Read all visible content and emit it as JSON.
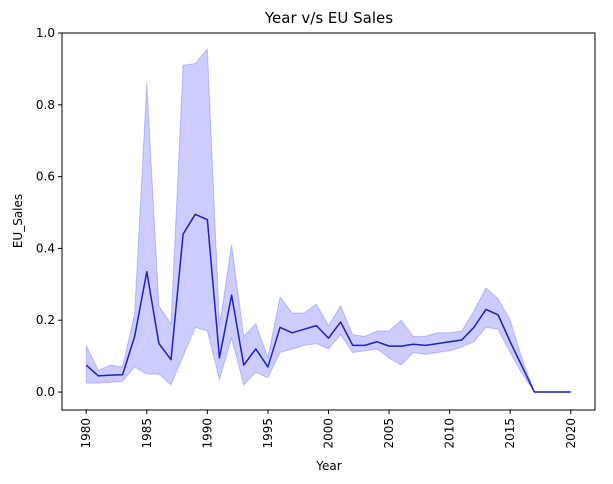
{
  "chart_data": {
    "type": "line",
    "title": "Year v/s EU Sales",
    "xlabel": "Year",
    "ylabel": "EU_Sales",
    "xlim": [
      1978.0,
      2022.0
    ],
    "ylim": [
      -0.05,
      1.0
    ],
    "xticks": [
      1980,
      1985,
      1990,
      1995,
      2000,
      2005,
      2010,
      2015,
      2020
    ],
    "yticks": [
      0.0,
      0.2,
      0.4,
      0.6,
      0.8,
      1.0
    ],
    "ytick_labels": [
      "0.0",
      "0.2",
      "0.4",
      "0.6",
      "0.8",
      "1.0"
    ],
    "xtick_rotation": "vertical",
    "grid": false,
    "colors": {
      "line": "#1f1fbf",
      "band": "#0000ff"
    },
    "series": [
      {
        "x": [
          1980,
          1981,
          1982,
          1983,
          1984,
          1985,
          1986,
          1987,
          1988,
          1989,
          1990,
          1991,
          1992,
          1993,
          1994,
          1995,
          1996,
          1997,
          1998,
          1999,
          2000,
          2001,
          2002,
          2003,
          2004,
          2005,
          2006,
          2007,
          2008,
          2009,
          2010,
          2011,
          2012,
          2013,
          2014,
          2015,
          2016,
          2017,
          2018,
          2019,
          2020
        ],
        "mean": [
          0.075,
          0.045,
          0.047,
          0.048,
          0.155,
          0.335,
          0.135,
          0.09,
          0.44,
          0.495,
          0.48,
          0.095,
          0.27,
          0.075,
          0.12,
          0.07,
          0.18,
          0.165,
          0.175,
          0.185,
          0.15,
          0.195,
          0.13,
          0.13,
          0.14,
          0.128,
          0.128,
          0.133,
          0.13,
          0.135,
          0.14,
          0.145,
          0.18,
          0.23,
          0.215,
          0.14,
          0.07,
          0.0,
          0.0,
          0.0,
          0.0
        ],
        "lower": [
          0.025,
          0.025,
          0.027,
          0.03,
          0.07,
          0.05,
          0.05,
          0.02,
          0.1,
          0.18,
          0.17,
          0.035,
          0.15,
          0.02,
          0.055,
          0.04,
          0.11,
          0.12,
          0.13,
          0.135,
          0.12,
          0.16,
          0.11,
          0.115,
          0.12,
          0.095,
          0.075,
          0.11,
          0.105,
          0.11,
          0.115,
          0.125,
          0.14,
          0.18,
          0.175,
          0.11,
          0.05,
          0.0,
          0.0,
          0.0,
          0.0
        ],
        "upper": [
          0.13,
          0.06,
          0.075,
          0.07,
          0.22,
          0.86,
          0.24,
          0.19,
          0.91,
          0.915,
          0.955,
          0.185,
          0.41,
          0.155,
          0.19,
          0.095,
          0.265,
          0.22,
          0.22,
          0.245,
          0.185,
          0.24,
          0.16,
          0.155,
          0.17,
          0.17,
          0.2,
          0.155,
          0.155,
          0.165,
          0.165,
          0.17,
          0.225,
          0.29,
          0.26,
          0.2,
          0.09,
          0.0,
          0.0,
          0.0,
          0.0
        ]
      }
    ]
  }
}
